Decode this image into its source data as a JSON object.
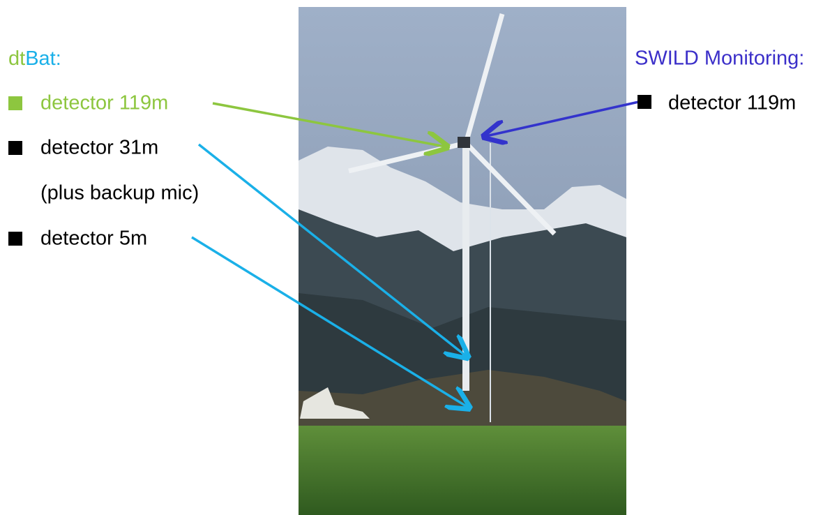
{
  "left": {
    "title_parts": [
      "dt",
      "Bat:"
    ],
    "items": [
      {
        "label": "detector 119m"
      },
      {
        "label": "detector 31m",
        "note": "(plus backup mic)"
      },
      {
        "label": "detector 5m"
      }
    ]
  },
  "right": {
    "title": "SWILD Monitoring:",
    "items": [
      {
        "label": "detector 119m"
      }
    ]
  }
}
